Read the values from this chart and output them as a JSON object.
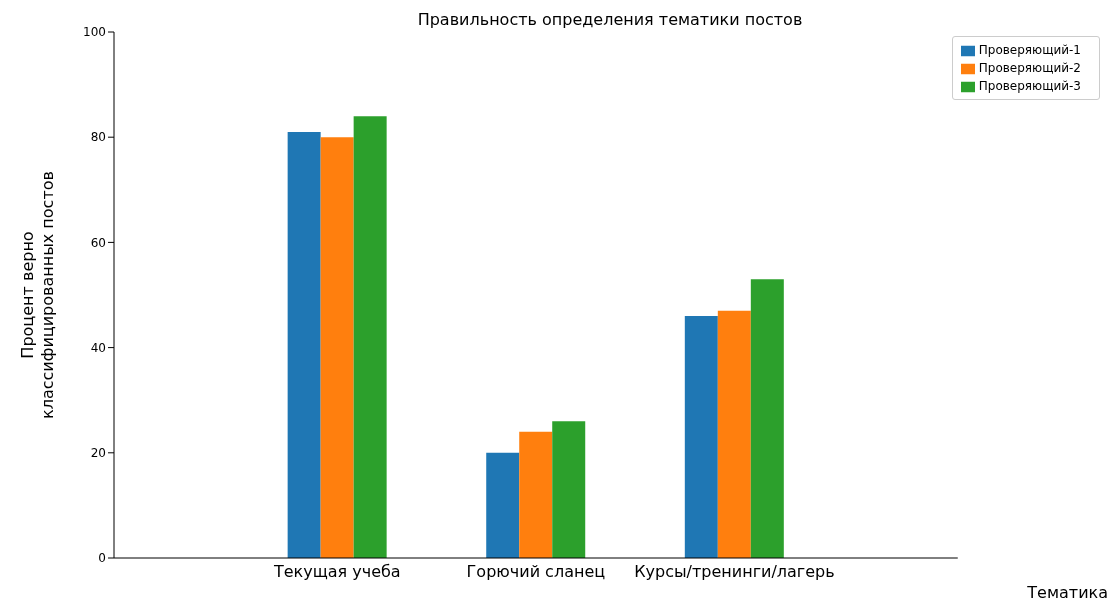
{
  "chart_data": {
    "type": "bar",
    "title": "Правильность определения тематики постов",
    "xlabel": "Тематика",
    "ylabel": "Процент верно\nклассифицированных постов",
    "categories": [
      "Текущая учеба",
      "Горючий сланец",
      "Курсы/тренинги/лагерь"
    ],
    "series": [
      {
        "name": "Проверяющий-1",
        "color": "#1f77b4",
        "values": [
          81,
          20,
          46
        ]
      },
      {
        "name": "Проверяющий-2",
        "color": "#ff7f0e",
        "values": [
          80,
          24,
          47
        ]
      },
      {
        "name": "Проверяющий-3",
        "color": "#2ca02c",
        "values": [
          84,
          26,
          53
        ]
      }
    ],
    "ylim": [
      0,
      100
    ],
    "yticks": [
      0,
      20,
      40,
      60,
      80,
      100
    ],
    "grid": false,
    "legend": "top right"
  }
}
